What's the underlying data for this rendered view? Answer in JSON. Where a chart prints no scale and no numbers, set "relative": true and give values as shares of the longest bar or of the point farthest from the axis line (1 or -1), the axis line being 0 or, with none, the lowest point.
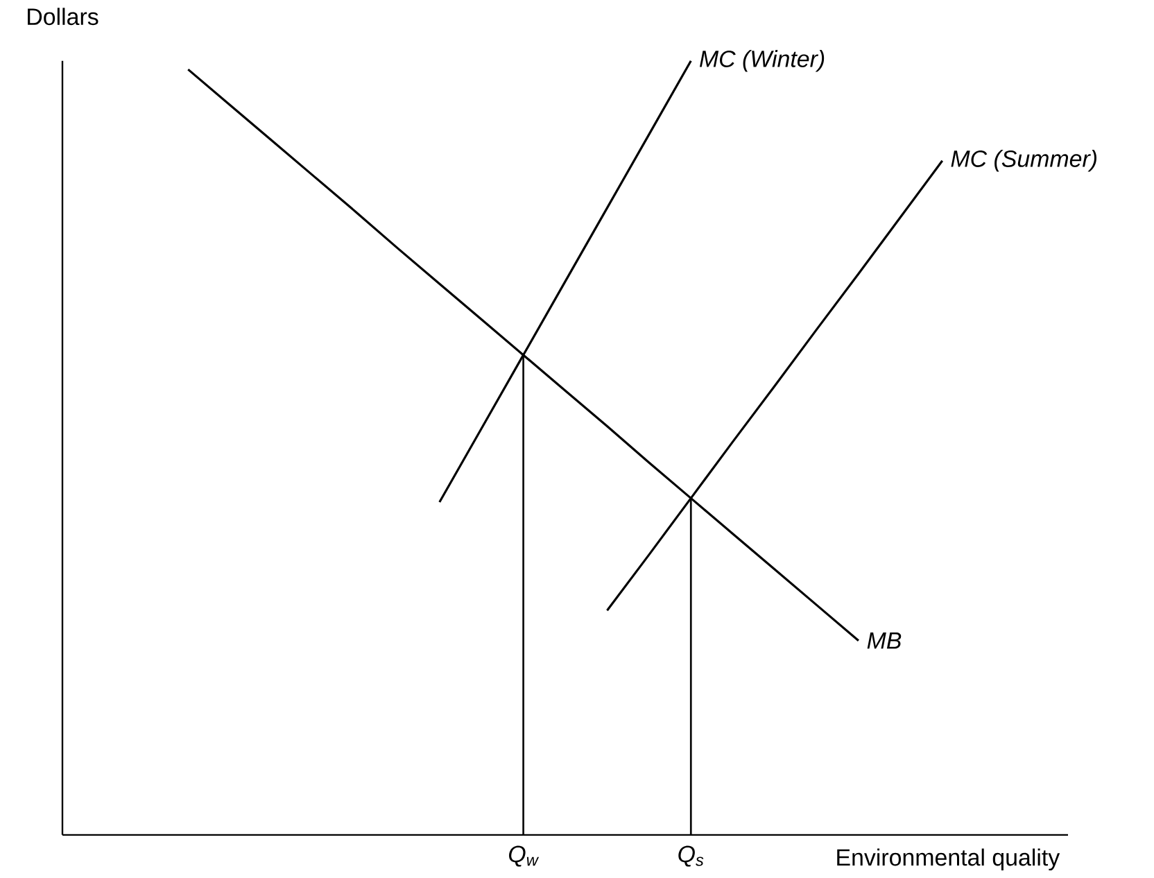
{
  "chart_data": {
    "type": "line",
    "relative": true,
    "xlabel": "Environmental quality",
    "ylabel": "Dollars",
    "categories": [
      null,
      null,
      null,
      null,
      null,
      null,
      null,
      null,
      null,
      null,
      null,
      "Q$_{w}$",
      null,
      null,
      null,
      "Q$_{s}$",
      null,
      null,
      null,
      null,
      null,
      null,
      null,
      null,
      null
    ],
    "tick_labels": "x",
    "marker": "none",
    "line_style": "solid",
    "series": [
      {
        "name": "MB",
        "color": "#000000",
        "values": [
          null,
          null,
          null,
          0.989,
          0.943,
          0.897,
          0.851,
          0.805,
          0.758,
          0.712,
          0.666,
          0.62,
          0.574,
          0.528,
          0.481,
          0.435,
          0.389,
          0.343,
          0.297,
          0.251,
          null,
          null,
          null,
          null,
          null
        ]
      },
      {
        "name": "*MC* (Winter)",
        "color": "#000000",
        "values": [
          null,
          null,
          null,
          null,
          null,
          null,
          null,
          null,
          null,
          0.43,
          0.525,
          0.62,
          0.715,
          0.81,
          0.905,
          1.0,
          null,
          null,
          null,
          null,
          null,
          null,
          null,
          null,
          null
        ]
      },
      {
        "name": "*MC* (Summer)",
        "color": "#000000",
        "values": [
          null,
          null,
          null,
          null,
          null,
          null,
          null,
          null,
          null,
          null,
          null,
          null,
          null,
          0.29,
          0.362,
          0.435,
          0.508,
          0.58,
          0.653,
          0.725,
          0.798,
          0.871,
          null,
          null,
          null
        ]
      },
      {
        "type": "bar",
        "color": "#000000",
        "values": [
          null,
          null,
          null,
          null,
          null,
          null,
          null,
          null,
          null,
          null,
          null,
          0.62,
          null,
          null,
          null,
          0.435,
          null,
          null,
          null,
          null,
          null,
          null,
          null,
          null,
          null
        ]
      }
    ]
  }
}
